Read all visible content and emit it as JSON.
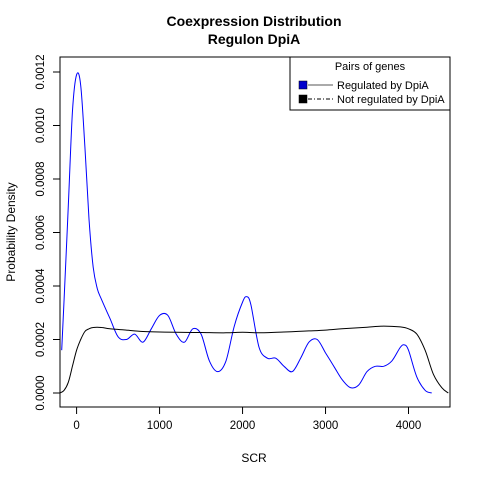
{
  "chart_data": {
    "type": "line",
    "title": "Coexpression Distribution",
    "subtitle": "Regulon DpiA",
    "xlabel": "SCR",
    "ylabel": "Probability Density",
    "xlim": [
      -200,
      4500
    ],
    "ylim": [
      0,
      0.0012
    ],
    "x_ticks": [
      0,
      1000,
      2000,
      3000,
      4000
    ],
    "x_tick_labels": [
      "0",
      "1000",
      "2000",
      "3000",
      "4000"
    ],
    "y_ticks": [
      0,
      0.0002,
      0.0004,
      0.0006,
      0.0008,
      0.001,
      0.0012
    ],
    "y_tick_labels": [
      "0.0000",
      "0.0002",
      "0.0004",
      "0.0006",
      "0.0008",
      "0.0010",
      "0.0012"
    ],
    "grid": false,
    "legend": {
      "position": "top-right",
      "title": "Pairs of genes",
      "entries": [
        "Regulated by  DpiA",
        "Not regulated by  DpiA"
      ],
      "box_colors": [
        "#0000cc",
        "#000000"
      ]
    },
    "series": [
      {
        "name": "Regulated by  DpiA",
        "color": "#0000ff",
        "line_style": "solid",
        "x": [
          -180,
          -150,
          -100,
          -50,
          0,
          50,
          100,
          150,
          200,
          250,
          300,
          400,
          500,
          600,
          700,
          800,
          900,
          1000,
          1100,
          1200,
          1300,
          1400,
          1500,
          1600,
          1700,
          1800,
          1900,
          2000,
          2050,
          2100,
          2200,
          2300,
          2400,
          2500,
          2600,
          2700,
          2800,
          2900,
          3000,
          3100,
          3200,
          3300,
          3400,
          3500,
          3600,
          3700,
          3800,
          3900,
          3950,
          4000,
          4100,
          4200,
          4280
        ],
        "y": [
          0.00016,
          0.00035,
          0.0007,
          0.00105,
          0.00119,
          0.00115,
          0.00092,
          0.00065,
          0.00047,
          0.00039,
          0.00035,
          0.00028,
          0.00021,
          0.0002,
          0.00022,
          0.00019,
          0.00024,
          0.00029,
          0.00029,
          0.00022,
          0.00019,
          0.00024,
          0.00022,
          0.00012,
          8e-05,
          0.00012,
          0.00025,
          0.00034,
          0.00036,
          0.00033,
          0.00017,
          0.00013,
          0.00013,
          0.0001,
          8e-05,
          0.00013,
          0.00019,
          0.0002,
          0.00015,
          0.0001,
          5e-05,
          2e-05,
          3e-05,
          8e-05,
          0.0001,
          0.0001,
          0.00012,
          0.00017,
          0.00018,
          0.00016,
          6e-05,
          1e-05,
          0.0
        ]
      },
      {
        "name": "Not regulated by  DpiA",
        "color": "#000000",
        "line_style": "solid",
        "x": [
          -200,
          -150,
          -100,
          -50,
          0,
          50,
          100,
          150,
          200,
          300,
          400,
          600,
          800,
          1000,
          1200,
          1500,
          1800,
          2000,
          2200,
          2500,
          2800,
          3000,
          3200,
          3500,
          3700,
          3900,
          4000,
          4100,
          4200,
          4300,
          4400,
          4480
        ],
        "y": [
          0.0,
          1e-05,
          4e-05,
          0.0001,
          0.00016,
          0.0002,
          0.00023,
          0.00024,
          0.000245,
          0.000245,
          0.00024,
          0.000235,
          0.00023,
          0.000228,
          0.000227,
          0.000226,
          0.000225,
          0.000227,
          0.000225,
          0.000228,
          0.000232,
          0.000235,
          0.00024,
          0.000246,
          0.00025,
          0.000247,
          0.00024,
          0.00022,
          0.00016,
          7e-05,
          2e-05,
          0.0
        ]
      }
    ]
  }
}
